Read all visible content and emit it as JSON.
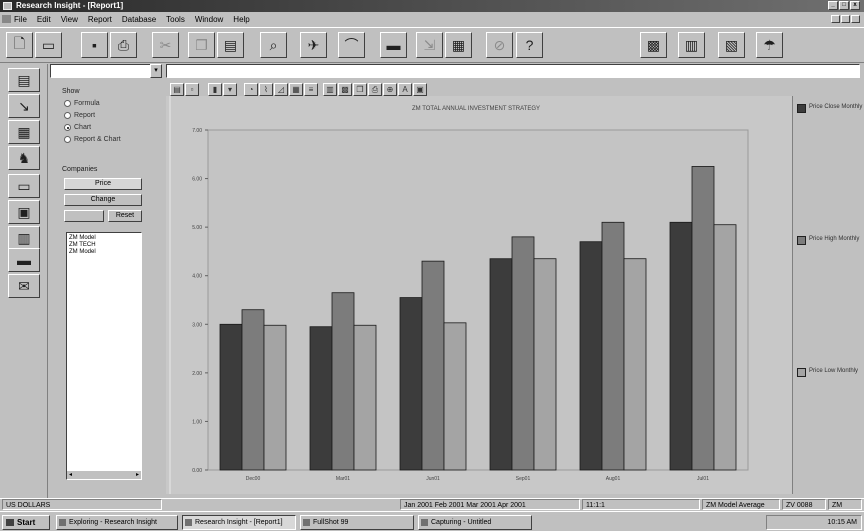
{
  "window": {
    "title": "Research Insight - [Report1]"
  },
  "menu": [
    "File",
    "Edit",
    "View",
    "Report",
    "Database",
    "Tools",
    "Window",
    "Help"
  ],
  "toolbar_icons": [
    "new-document-icon",
    "open-folder-icon",
    "save-disk-icon",
    "print-icon",
    "cut-icon",
    "copy-icon",
    "paste-icon",
    "lookup-icon",
    "run-icon",
    "chart-wizard-icon",
    "graph-icon",
    "export-icon",
    "report-icon",
    "cancel-icon",
    "help-pointer-icon",
    "screen-a-icon",
    "screen-b-icon",
    "screen-c-icon",
    "screen-d-icon"
  ],
  "left_tools": [
    "report-tool-icon",
    "graph-tool-icon",
    "screen-tool-icon",
    "people-tool-icon",
    "chart-tool-icon",
    "monitor-tool-icon",
    "financial-tool-icon",
    "filing-tool-icon",
    "mail-tool-icon"
  ],
  "panel": {
    "show_label": "Show",
    "show_options": [
      {
        "label": "Formula",
        "selected": false
      },
      {
        "label": "Report",
        "selected": false
      },
      {
        "label": "Chart",
        "selected": true
      },
      {
        "label": "Report & Chart",
        "selected": false
      }
    ],
    "companies_label": "Companies",
    "search_value": "Price",
    "change_button": "Change",
    "reset_button": "Reset",
    "list_items": [
      "ZM Model",
      "ZM TECH",
      "ZM Model"
    ]
  },
  "chart_toolbar_icons": [
    "chart-type-icon",
    "format-icon",
    "bar-icon",
    "dropdown-icon",
    "pie-icon",
    "line-icon",
    "area-icon",
    "table-icon",
    "legend-icon",
    "grid-icon",
    "axis-icon",
    "copy-chart-icon",
    "print-chart-icon",
    "zoom-icon",
    "label-icon",
    "toggle-icon"
  ],
  "chart_data": {
    "type": "bar",
    "title": "ZM TOTAL ANNUAL INVESTMENT STRATEGY",
    "categories": [
      "Dec00",
      "Mar01",
      "Jun01",
      "Sep01",
      "Aug01",
      "Jul01"
    ],
    "series": [
      {
        "name": "Price Close Monthly",
        "color": "#3c3c3c",
        "values": [
          3.0,
          2.95,
          3.55,
          4.35,
          4.7,
          5.1
        ]
      },
      {
        "name": "Price High Monthly",
        "color": "#7c7c7c",
        "values": [
          3.3,
          3.65,
          4.3,
          4.8,
          5.1,
          6.25
        ]
      },
      {
        "name": "Price Low Monthly",
        "color": "#a4a4a4",
        "values": [
          2.98,
          2.98,
          3.03,
          4.35,
          4.35,
          5.05
        ]
      }
    ],
    "ylim": [
      0,
      7
    ],
    "yticks": [
      "0.00",
      "1.00",
      "2.00",
      "3.00",
      "4.00",
      "5.00",
      "6.00",
      "7.00"
    ],
    "grid": false,
    "legend_position": "right"
  },
  "statusbar": {
    "left": "US DOLLARS",
    "middle": "Jan 2001 Feb 2001 Mar 2001 Apr 2001",
    "center": "11:1:1",
    "right_a": "ZM Model Average",
    "right_b": "ZV 0088",
    "right_c": "ZM"
  },
  "taskbar": {
    "start_label": "Start",
    "tasks": [
      {
        "label": "Exploring - Research Insight",
        "active": false
      },
      {
        "label": "Research Insight - [Report1]",
        "active": true
      },
      {
        "label": "FullShot 99",
        "active": false
      },
      {
        "label": "Capturing - Untitled",
        "active": false
      }
    ],
    "clock": "10:15 AM"
  }
}
